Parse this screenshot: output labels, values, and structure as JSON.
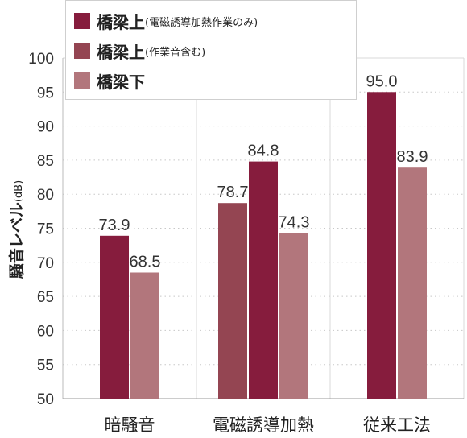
{
  "chart_data": {
    "type": "bar",
    "title": "",
    "xlabel": "",
    "ylabel": "騒音レベル",
    "ylabel_unit": "(dB)",
    "ylim": [
      50,
      100
    ],
    "yticks": [
      "50",
      "55",
      "60",
      "65",
      "70",
      "75",
      "80",
      "85",
      "90",
      "95",
      "100"
    ],
    "grid": "horizontal dotted",
    "legend_position": "top-left",
    "categories": [
      "暗騒音",
      "電磁誘導加熱",
      "従来工法"
    ],
    "series": [
      {
        "name": "橋梁上(作業音含む)",
        "label_main": "橋梁上",
        "label_sub": "(作業音含む)",
        "color": "#944552",
        "values": [
          null,
          78.7,
          null
        ],
        "labels": [
          "",
          "78.7",
          ""
        ]
      },
      {
        "name": "橋梁上(電磁誘導加熱作業のみ)",
        "label_main": "橋梁上",
        "label_sub": "(電磁誘導加熱作業のみ)",
        "color": "#861c3d",
        "values": [
          73.9,
          84.8,
          95.0
        ],
        "labels": [
          "73.9",
          "84.8",
          "95.0"
        ]
      },
      {
        "name": "橋梁下",
        "label_main": "橋梁下",
        "label_sub": "",
        "color": "#b2767c",
        "values": [
          68.5,
          74.3,
          83.9
        ],
        "labels": [
          "68.5",
          "74.3",
          "83.9"
        ]
      }
    ],
    "legend_order": [
      1,
      0,
      2
    ]
  }
}
